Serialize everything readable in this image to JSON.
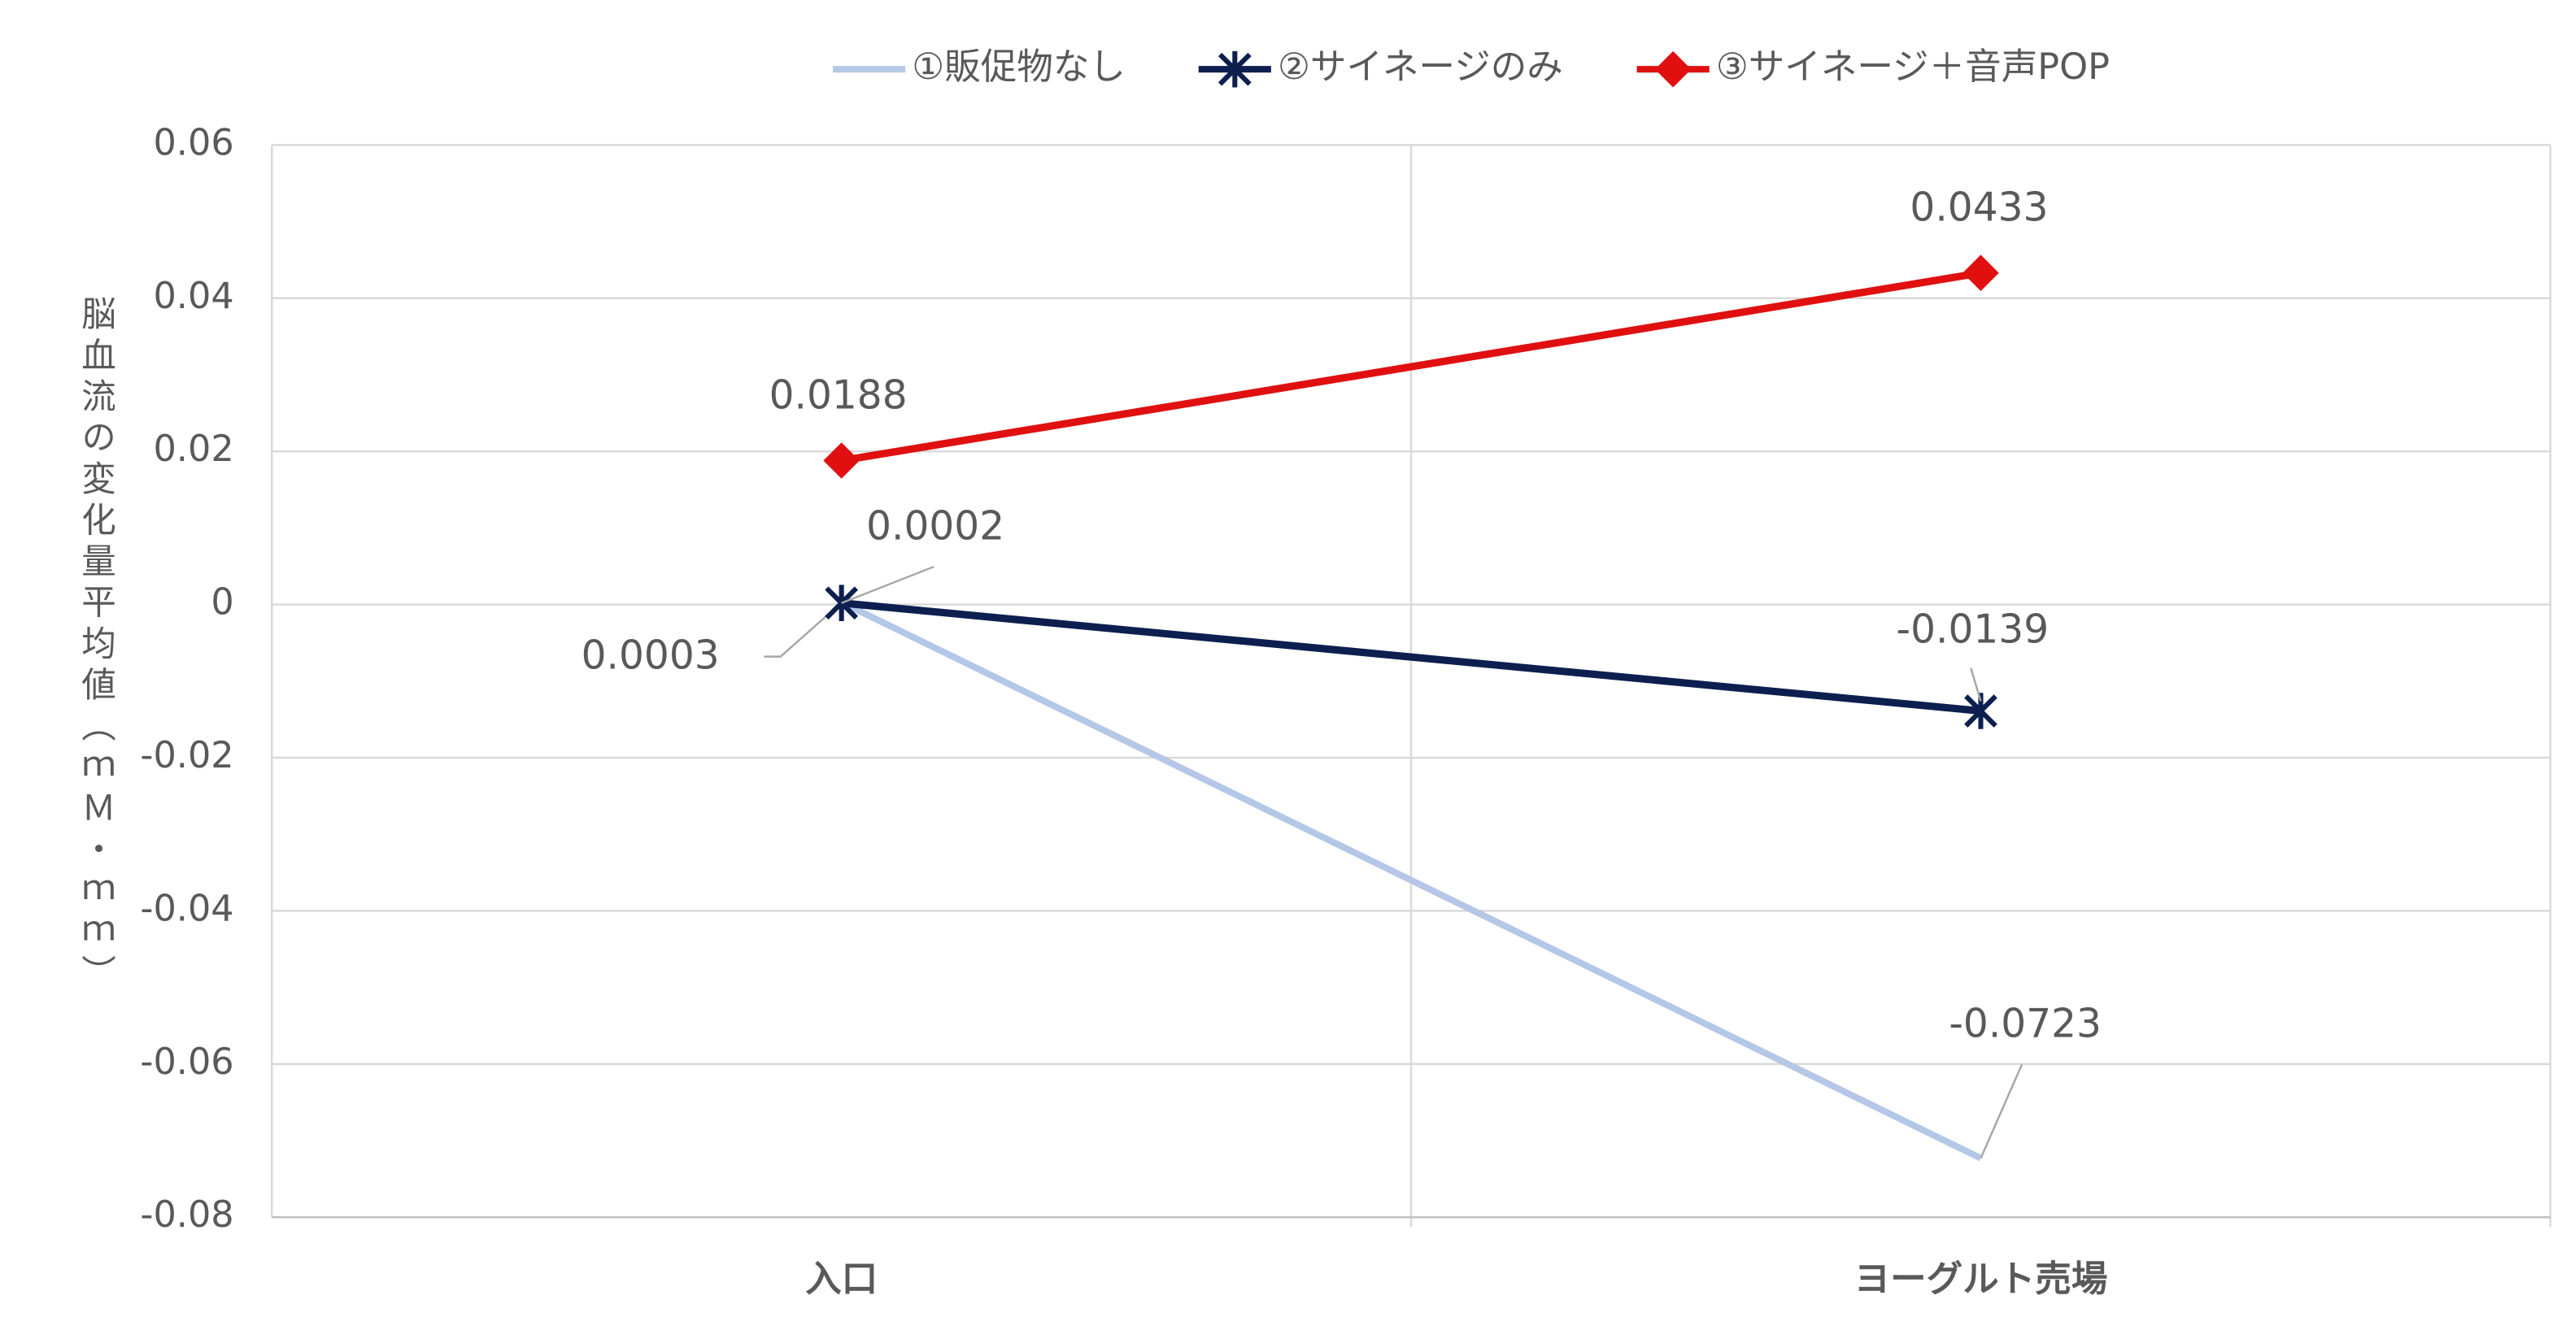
{
  "chart_data": {
    "type": "line",
    "y_label": "脳血流の変化量平均値（ｍＭ・ｍｍ）",
    "categories": [
      "入口",
      "ヨーグルト売場"
    ],
    "series": [
      {
        "name": "①販促物なし",
        "color": "#b4c7e7",
        "label_color": "#5b86b5",
        "marker": "none",
        "values": [
          0.0003,
          -0.0723
        ]
      },
      {
        "name": "②サイネージのみ",
        "color": "#0d1f4f",
        "label_color": "#0d1f4f",
        "marker": "star",
        "values": [
          0.0002,
          -0.0139
        ]
      },
      {
        "name": "③サイネージ＋音声POP",
        "color": "#e01010",
        "label_color": "#c00000",
        "marker": "diamond",
        "values": [
          0.0188,
          0.0433
        ]
      }
    ],
    "ylim": [
      -0.08,
      0.06
    ],
    "yticks": [
      -0.08,
      -0.06,
      -0.04,
      -0.02,
      0,
      0.02,
      0.04,
      0.06
    ],
    "grid": true,
    "legend": "top"
  }
}
